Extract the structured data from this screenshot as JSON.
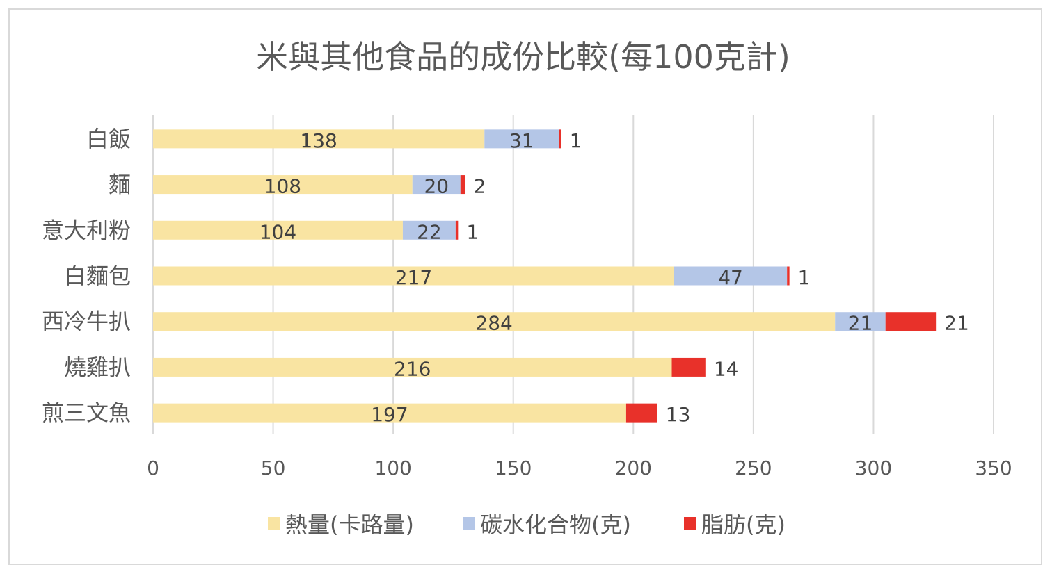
{
  "chart_data": {
    "type": "bar",
    "orientation": "horizontal",
    "stacked": true,
    "title": "米與其他食品的成份比較(每100克計)",
    "xlabel": "",
    "ylabel": "",
    "categories": [
      "白飯",
      "麵",
      "意大利粉",
      "白麵包",
      "西冷牛扒",
      "燒雞扒",
      "煎三文魚"
    ],
    "series": [
      {
        "name": "熱量(卡路量)",
        "color": "#f9e4a2",
        "values": [
          138,
          108,
          104,
          217,
          284,
          216,
          197
        ]
      },
      {
        "name": "碳水化合物(克)",
        "color": "#b4c6e7",
        "values": [
          31,
          20,
          22,
          47,
          21,
          null,
          null
        ]
      },
      {
        "name": "脂肪(克)",
        "color": "#e8312a",
        "values": [
          1,
          2,
          1,
          1,
          21,
          14,
          13
        ]
      }
    ],
    "xlim": [
      0,
      350
    ],
    "xticks": [
      "0",
      "50",
      "100",
      "150",
      "200",
      "250",
      "300",
      "350"
    ],
    "grid": true,
    "legend": "bottom",
    "data_labels": true
  }
}
